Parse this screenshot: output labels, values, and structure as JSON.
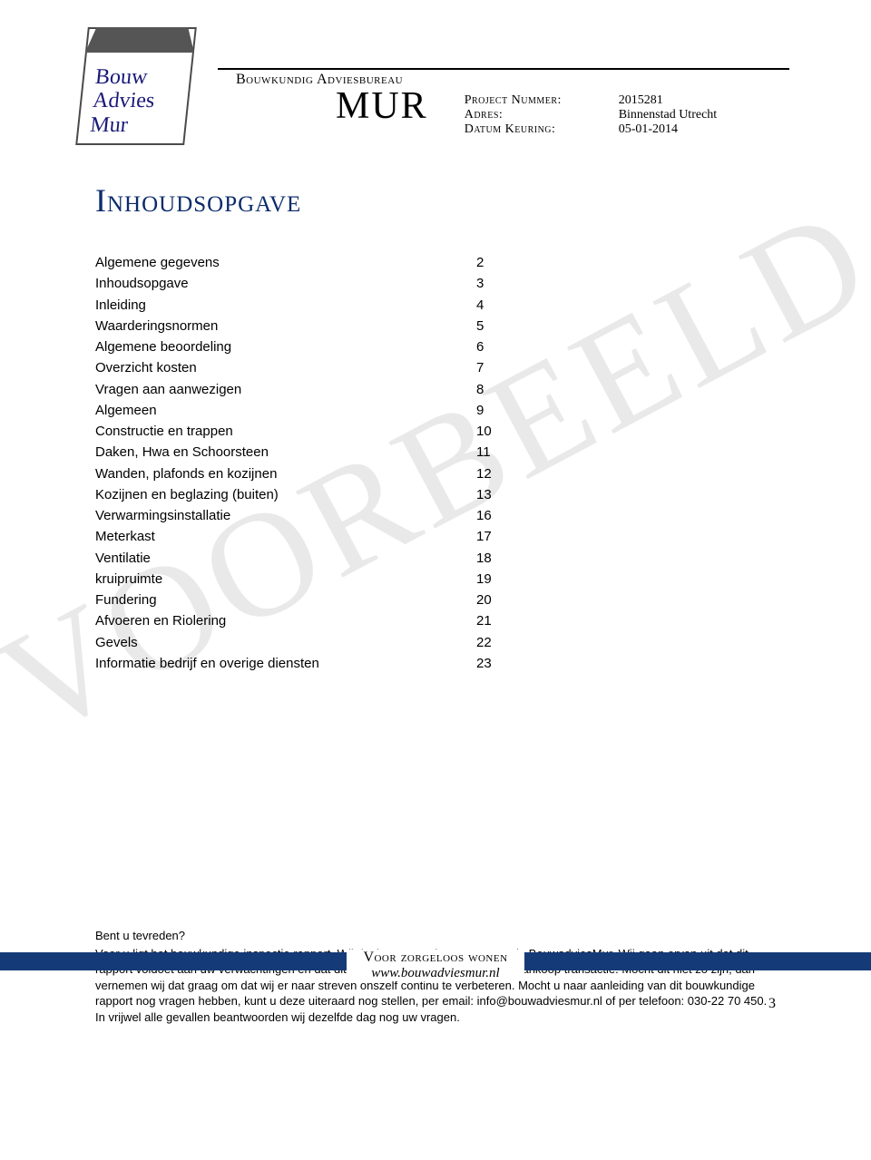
{
  "logo": {
    "line1": "Bouw",
    "line2": "Advies",
    "line3": "Mur"
  },
  "header": {
    "bureau": "Bouwkundig Adviesbureau",
    "brand": "MUR",
    "meta": [
      {
        "label": "Project Nummer:",
        "value": "2015281"
      },
      {
        "label": "Adres:",
        "value": "Binnenstad Utrecht"
      },
      {
        "label": "Datum Keuring:",
        "value": "05-01-2014"
      }
    ]
  },
  "watermark": "VOORBEELD",
  "title": "Inhoudsopgave",
  "toc": [
    {
      "label": "Algemene gegevens",
      "page": "2"
    },
    {
      "label": "Inhoudsopgave",
      "page": "3"
    },
    {
      "label": "Inleiding",
      "page": "4"
    },
    {
      "label": "Waarderingsnormen",
      "page": "5"
    },
    {
      "label": "Algemene beoordeling",
      "page": "6"
    },
    {
      "label": "Overzicht kosten",
      "page": "7"
    },
    {
      "label": "Vragen aan aanwezigen",
      "page": "8"
    },
    {
      "label": "Algemeen",
      "page": "9"
    },
    {
      "label": "Constructie en trappen",
      "page": "10"
    },
    {
      "label": "Daken, Hwa en Schoorsteen",
      "page": "11"
    },
    {
      "label": "Wanden, plafonds en kozijnen",
      "page": "12"
    },
    {
      "label": "Kozijnen en beglazing (buiten)",
      "page": "13"
    },
    {
      "label": "Verwarmingsinstallatie",
      "page": "16"
    },
    {
      "label": "Meterkast",
      "page": "17"
    },
    {
      "label": "Ventilatie",
      "page": "18"
    },
    {
      "label": "kruipruimte",
      "page": "19"
    },
    {
      "label": "Fundering",
      "page": "20"
    },
    {
      "label": "Afvoeren en Riolering",
      "page": "21"
    },
    {
      "label": "Gevels",
      "page": "22"
    },
    {
      "label": "Informatie bedrijf en overige diensten",
      "page": "23"
    }
  ],
  "bottom": {
    "question": "Bent u tevreden?",
    "body": "Voor u ligt het bouwkundige inspectie rapport. Wij danken u voor het vertrouwen in BouwadviesMur. Wij gaan ervan uit dat dit rapport voldoet aan uw verwachtingen en dat dit een toevoeging zal zijn voor de aankoop transactie. Mocht dit niet zo zijn, dan vernemen wij dat graag om dat wij er naar streven onszelf continu te verbeteren. Mocht u naar aanleiding van dit bouwkundige rapport nog vragen hebben, kunt u deze uiteraard nog stellen, per email: info@bouwadviesmur.nl of per telefoon: 030-22 70 450. In vrijwel alle gevallen beantwoorden wij dezelfde dag nog uw vragen."
  },
  "footer": {
    "tagline": "Voor zorgeloos wonen",
    "url": "www.bouwadviesmur.nl",
    "stripe_color": "#153a78"
  },
  "page_number": "3",
  "colors": {
    "title": "#0b2b6b",
    "watermark": "#e9e9e9"
  }
}
